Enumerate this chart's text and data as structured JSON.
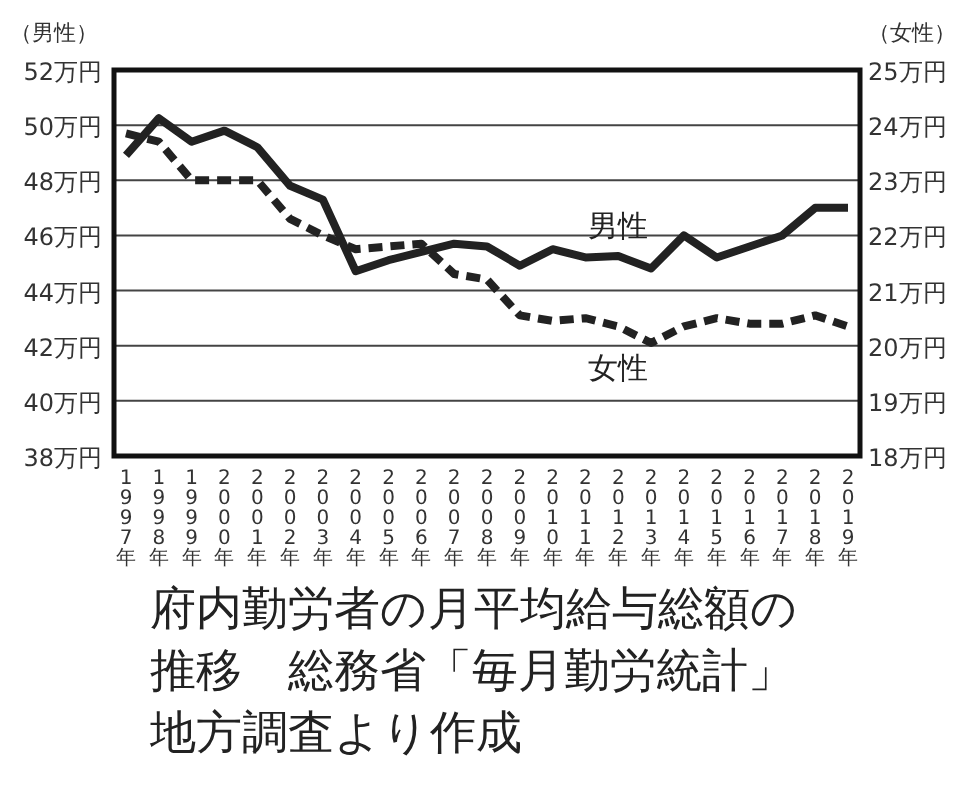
{
  "chart_data": {
    "type": "line",
    "ylabel": "（男性）",
    "y2label": "（女性）",
    "categories": [
      "1997年",
      "1998年",
      "1999年",
      "2000年",
      "2001年",
      "2002年",
      "2003年",
      "2004年",
      "2005年",
      "2006年",
      "2007年",
      "2008年",
      "2009年",
      "2010年",
      "2011年",
      "2012年",
      "2013年",
      "2014年",
      "2015年",
      "2016年",
      "2017年",
      "2018年",
      "2019年"
    ],
    "series": [
      {
        "name": "男性",
        "color": "#222222",
        "line_style": "solid",
        "values": [
          48.9,
          50.25,
          49.4,
          49.8,
          49.2,
          47.8,
          47.3,
          44.7,
          45.1,
          45.4,
          45.7,
          45.6,
          44.9,
          45.5,
          45.2,
          45.25,
          44.8,
          46.0,
          45.2,
          45.6,
          46.0,
          47.0,
          47.0
        ]
      },
      {
        "name": "女性",
        "color": "#222222",
        "line_style": "dashed",
        "axis": "y2",
        "values": [
          23.85,
          23.7,
          23.0,
          23.0,
          23.0,
          22.3,
          22.0,
          21.75,
          21.8,
          21.85,
          21.3,
          21.2,
          20.55,
          20.45,
          20.5,
          20.35,
          20.05,
          20.35,
          20.5,
          20.4,
          20.4,
          20.55,
          20.35
        ]
      }
    ],
    "ylim": [
      38,
      52
    ],
    "yticks": [
      {
        "value": 38,
        "label": "38万円"
      },
      {
        "value": 40,
        "label": "40万円"
      },
      {
        "value": 42,
        "label": "42万円"
      },
      {
        "value": 44,
        "label": "44万円"
      },
      {
        "value": 46,
        "label": "46万円"
      },
      {
        "value": 48,
        "label": "48万円"
      },
      {
        "value": 50,
        "label": "50万円"
      },
      {
        "value": 52,
        "label": "52万円"
      }
    ],
    "y2lim": [
      18,
      25
    ],
    "y2ticks": [
      {
        "value": 18,
        "label": "18万円"
      },
      {
        "value": 19,
        "label": "19万円"
      },
      {
        "value": 20,
        "label": "20万円"
      },
      {
        "value": 21,
        "label": "21万円"
      },
      {
        "value": 22,
        "label": "22万円"
      },
      {
        "value": 23,
        "label": "23万円"
      },
      {
        "value": 24,
        "label": "24万円"
      },
      {
        "value": 25,
        "label": "25万円"
      }
    ],
    "grid": "y",
    "annotations": [
      "府内勤労者の月平均給与総額の推移　総務省「毎月勤労統計」地方調査より作成"
    ]
  }
}
